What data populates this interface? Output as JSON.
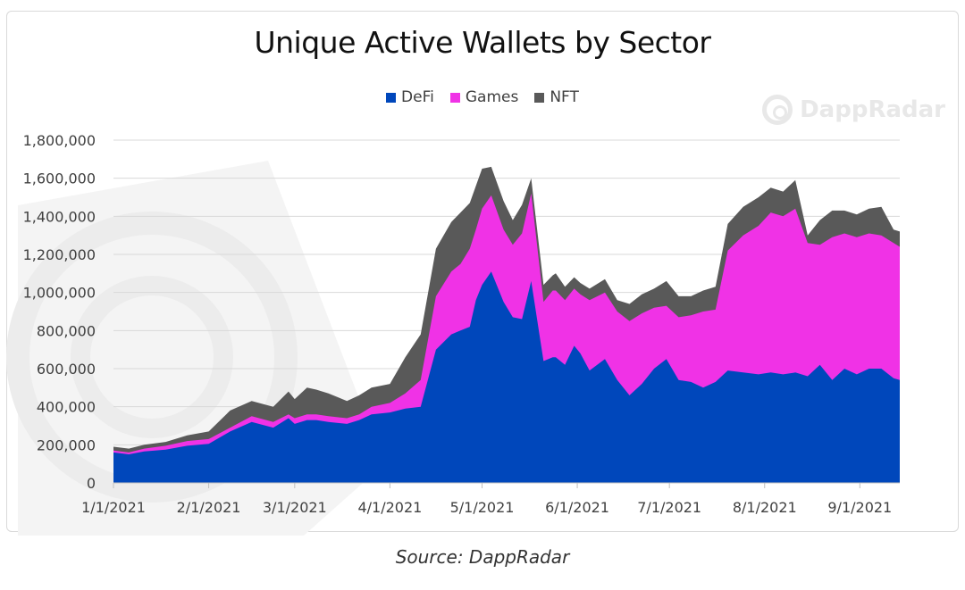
{
  "chart_data": {
    "type": "area",
    "stacked": true,
    "title": "Unique Active Wallets by Sector",
    "xlabel": "",
    "ylabel": "",
    "ylim": [
      0,
      1800000
    ],
    "y_ticks": [
      "1,800,000",
      "1,600,000",
      "1,400,000",
      "1,200,000",
      "1,000,000",
      "800,000",
      "600,000",
      "400,000",
      "200,000",
      "0"
    ],
    "x_ticks": [
      "1/1/2021",
      "2/1/2021",
      "3/1/2021",
      "4/1/2021",
      "5/1/2021",
      "6/1/2021",
      "7/1/2021",
      "8/1/2021",
      "9/1/2021"
    ],
    "legend_position": "top-center",
    "x_range_days": [
      0,
      256
    ],
    "note": "Values sampled at key days (day 0 = 1/1/2021); cumulative stacked totals estimated from gridlines",
    "series": [
      {
        "name": "DeFi",
        "color": "#0047bb",
        "days": [
          0,
          5,
          10,
          17,
          24,
          31,
          38,
          45,
          52,
          57,
          59,
          63,
          66,
          70,
          76,
          80,
          84,
          90,
          95,
          100,
          105,
          110,
          113,
          116,
          118,
          120,
          123,
          127,
          130,
          133,
          136,
          140,
          143,
          144,
          147,
          150,
          152,
          155,
          160,
          164,
          168,
          172,
          176,
          180,
          184,
          188,
          192,
          196,
          200,
          205,
          210,
          214,
          218,
          222,
          226,
          230,
          234,
          238,
          242,
          246,
          250,
          254,
          256
        ],
        "values": [
          160000,
          150000,
          165000,
          175000,
          195000,
          205000,
          270000,
          320000,
          290000,
          340000,
          310000,
          330000,
          330000,
          320000,
          310000,
          330000,
          360000,
          370000,
          390000,
          400000,
          700000,
          780000,
          800000,
          820000,
          960000,
          1040000,
          1110000,
          950000,
          870000,
          860000,
          1060000,
          640000,
          660000,
          660000,
          620000,
          720000,
          680000,
          590000,
          650000,
          540000,
          460000,
          520000,
          600000,
          650000,
          540000,
          530000,
          500000,
          530000,
          590000,
          580000,
          570000,
          580000,
          570000,
          580000,
          560000,
          620000,
          540000,
          600000,
          570000,
          600000,
          600000,
          550000,
          540000
        ]
      },
      {
        "name": "Games",
        "color": "#f032e6",
        "days": [
          0,
          5,
          10,
          17,
          24,
          31,
          38,
          45,
          52,
          57,
          59,
          63,
          66,
          70,
          76,
          80,
          84,
          90,
          95,
          100,
          105,
          110,
          113,
          116,
          118,
          120,
          123,
          127,
          130,
          133,
          136,
          140,
          143,
          144,
          147,
          150,
          152,
          155,
          160,
          164,
          168,
          172,
          176,
          180,
          184,
          188,
          192,
          196,
          200,
          205,
          210,
          214,
          218,
          222,
          226,
          230,
          234,
          238,
          242,
          246,
          250,
          254,
          256
        ],
        "values": [
          170000,
          160000,
          180000,
          195000,
          220000,
          230000,
          290000,
          350000,
          320000,
          360000,
          340000,
          360000,
          360000,
          350000,
          340000,
          360000,
          400000,
          420000,
          470000,
          540000,
          980000,
          1110000,
          1150000,
          1230000,
          1330000,
          1440000,
          1510000,
          1330000,
          1250000,
          1310000,
          1520000,
          950000,
          1010000,
          1010000,
          960000,
          1020000,
          990000,
          960000,
          1000000,
          900000,
          850000,
          890000,
          920000,
          930000,
          870000,
          880000,
          900000,
          910000,
          1220000,
          1300000,
          1350000,
          1420000,
          1400000,
          1440000,
          1260000,
          1250000,
          1290000,
          1310000,
          1290000,
          1310000,
          1300000,
          1260000,
          1240000
        ]
      },
      {
        "name": "NFT",
        "color": "#595959",
        "days": [
          0,
          5,
          10,
          17,
          24,
          31,
          38,
          45,
          52,
          57,
          59,
          63,
          66,
          70,
          76,
          80,
          84,
          90,
          95,
          100,
          105,
          110,
          113,
          116,
          118,
          120,
          123,
          127,
          130,
          133,
          136,
          140,
          143,
          144,
          147,
          150,
          152,
          155,
          160,
          164,
          168,
          172,
          176,
          180,
          184,
          188,
          192,
          196,
          200,
          205,
          210,
          214,
          218,
          222,
          226,
          230,
          234,
          238,
          242,
          246,
          250,
          254,
          256
        ],
        "values": [
          190000,
          180000,
          200000,
          215000,
          250000,
          270000,
          380000,
          430000,
          400000,
          480000,
          440000,
          500000,
          490000,
          470000,
          430000,
          460000,
          500000,
          520000,
          660000,
          780000,
          1230000,
          1370000,
          1420000,
          1470000,
          1560000,
          1650000,
          1660000,
          1480000,
          1380000,
          1460000,
          1600000,
          1040000,
          1090000,
          1100000,
          1030000,
          1080000,
          1050000,
          1020000,
          1070000,
          960000,
          940000,
          990000,
          1020000,
          1060000,
          980000,
          980000,
          1010000,
          1030000,
          1360000,
          1450000,
          1500000,
          1550000,
          1530000,
          1590000,
          1300000,
          1380000,
          1430000,
          1430000,
          1410000,
          1440000,
          1450000,
          1330000,
          1320000
        ]
      }
    ]
  },
  "watermark": {
    "text": "DappRadar"
  },
  "caption": "Source: DappRadar",
  "colors": {
    "defi": "#0047bb",
    "games": "#f032e6",
    "nft": "#595959",
    "grid": "#d9d9d9"
  }
}
